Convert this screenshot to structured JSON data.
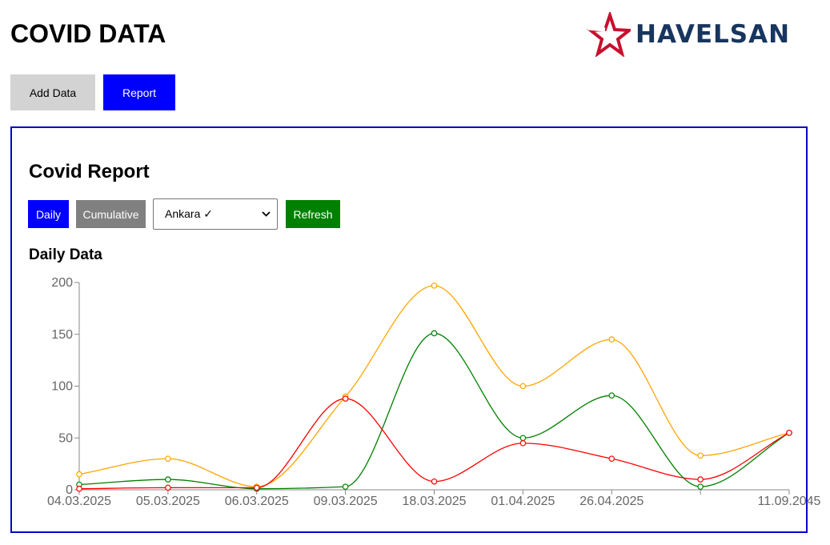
{
  "app": {
    "title": "COVID DATA",
    "logo_text": "HAVELSAN",
    "logo_icon": "star-logo-icon"
  },
  "nav": {
    "add_data_label": "Add Data",
    "report_label": "Report"
  },
  "report": {
    "title": "Covid Report",
    "daily_label": "Daily",
    "cumulative_label": "Cumulative",
    "city_selected": "Ankara ✓",
    "refresh_label": "Refresh",
    "section_title": "Daily Data"
  },
  "colors": {
    "primary_blue": "#0000ff",
    "refresh_green": "#008000",
    "cumulative_gray": "#808080",
    "logo_navy": "#17355e",
    "logo_red": "#c8102e"
  },
  "chart_data": {
    "type": "line",
    "x": [
      "04.03.2025",
      "05.03.2025",
      "06.03.2025",
      "09.03.2025",
      "18.03.2025",
      "01.04.2025",
      "26.04.2025",
      "",
      "11.09.2045"
    ],
    "ylim": [
      0,
      200
    ],
    "yticks": [
      0,
      50,
      100,
      150,
      200
    ],
    "grid": false,
    "legend": "none",
    "series": [
      {
        "color": "#ffa500",
        "values": [
          15,
          30,
          3,
          90,
          197,
          100,
          145,
          33,
          55
        ]
      },
      {
        "color": "#008000",
        "values": [
          5,
          10,
          1,
          3,
          151,
          50,
          91,
          3,
          55
        ]
      },
      {
        "color": "#ff0000",
        "values": [
          1,
          2,
          2,
          88,
          8,
          45,
          30,
          10,
          55
        ]
      }
    ]
  }
}
